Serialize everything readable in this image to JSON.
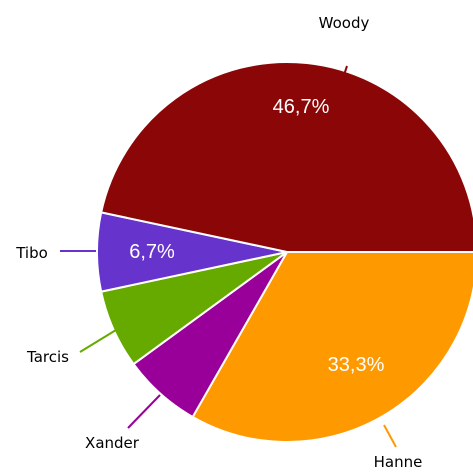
{
  "chart_data": {
    "type": "pie",
    "title": "",
    "slices": [
      {
        "label": "Hanne",
        "value": 33.3,
        "value_label": "33,3%",
        "color": "#FF9900"
      },
      {
        "label": "Xander",
        "value": 6.7,
        "value_label": "",
        "color": "#990099"
      },
      {
        "label": "Tarcis",
        "value": 6.7,
        "value_label": "",
        "color": "#66AA00"
      },
      {
        "label": "Tibo",
        "value": 6.7,
        "value_label": "6,7%",
        "color": "#6633CC"
      },
      {
        "label": "Woody",
        "value": 46.7,
        "value_label": "46,7%",
        "color": "#8B0707"
      }
    ],
    "start_angle_deg": 0,
    "direction": "clockwise"
  }
}
